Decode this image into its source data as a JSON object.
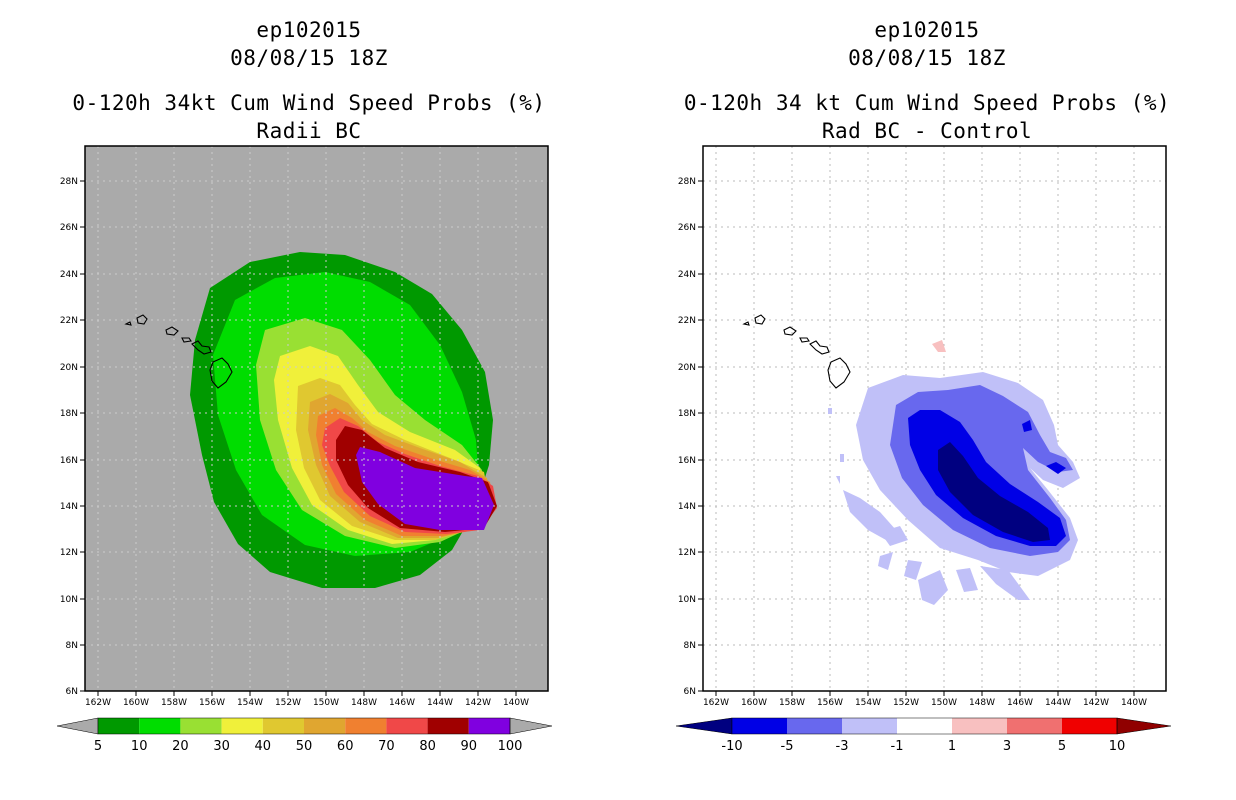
{
  "left": {
    "storm_id": "ep102015",
    "datetime": "08/08/15 18Z",
    "title": "0-120h 34kt Cum Wind Speed Probs (%)",
    "subtitle": "Radii BC"
  },
  "right": {
    "storm_id": "ep102015",
    "datetime": "08/08/15 18Z",
    "title": "0-120h 34 kt Cum Wind Speed Probs (%)",
    "subtitle": "Rad BC - Control"
  },
  "axes": {
    "lon_ticks": [
      "162W",
      "160W",
      "158W",
      "156W",
      "154W",
      "152W",
      "150W",
      "148W",
      "146W",
      "144W",
      "142W",
      "140W"
    ],
    "lat_ticks": [
      "28N",
      "26N",
      "24N",
      "22N",
      "20N",
      "18N",
      "16N",
      "14N",
      "12N",
      "10N",
      "8N",
      "6N"
    ],
    "lon_values": [
      -162,
      -160,
      -158,
      -156,
      -154,
      -152,
      -150,
      -148,
      -146,
      -144,
      -142,
      -140
    ],
    "lat_values": [
      28,
      26,
      24,
      22,
      20,
      18,
      16,
      14,
      12,
      10,
      8,
      6
    ]
  },
  "left_colorbar": {
    "labels": [
      "5",
      "10",
      "20",
      "30",
      "40",
      "50",
      "60",
      "70",
      "80",
      "90",
      "100"
    ],
    "colors": [
      "#009900",
      "#00dd00",
      "#99e033",
      "#f0f03a",
      "#e0c830",
      "#e0a630",
      "#f08030",
      "#f04848",
      "#a00000",
      "#8000e0"
    ],
    "end_color": "#aaaaaa"
  },
  "right_colorbar": {
    "labels": [
      "-10",
      "-5",
      "-3",
      "-1",
      "1",
      "3",
      "5",
      "10"
    ],
    "colors": [
      "#0000e6",
      "#6868ee",
      "#c0c0f8",
      "#ffffff",
      "#f8c0c0",
      "#f07070",
      "#f00000"
    ],
    "low_end_color": "#000080",
    "high_end_color": "#900000"
  },
  "left_colors": {
    "background": "#aaaaaa",
    "p5": "#009900",
    "p10": "#00dd00",
    "p20": "#99e033",
    "p30": "#f0f03a",
    "p40": "#e0c830",
    "p50": "#e0a630",
    "p60": "#f08030",
    "p70": "#f04848",
    "p80": "#a00000",
    "p90": "#8000e0"
  },
  "right_colors": {
    "n10": "#000080",
    "n5": "#0000e6",
    "n3": "#6868ee",
    "n1": "#c0c0f8",
    "p1": "#f8c0c0"
  }
}
